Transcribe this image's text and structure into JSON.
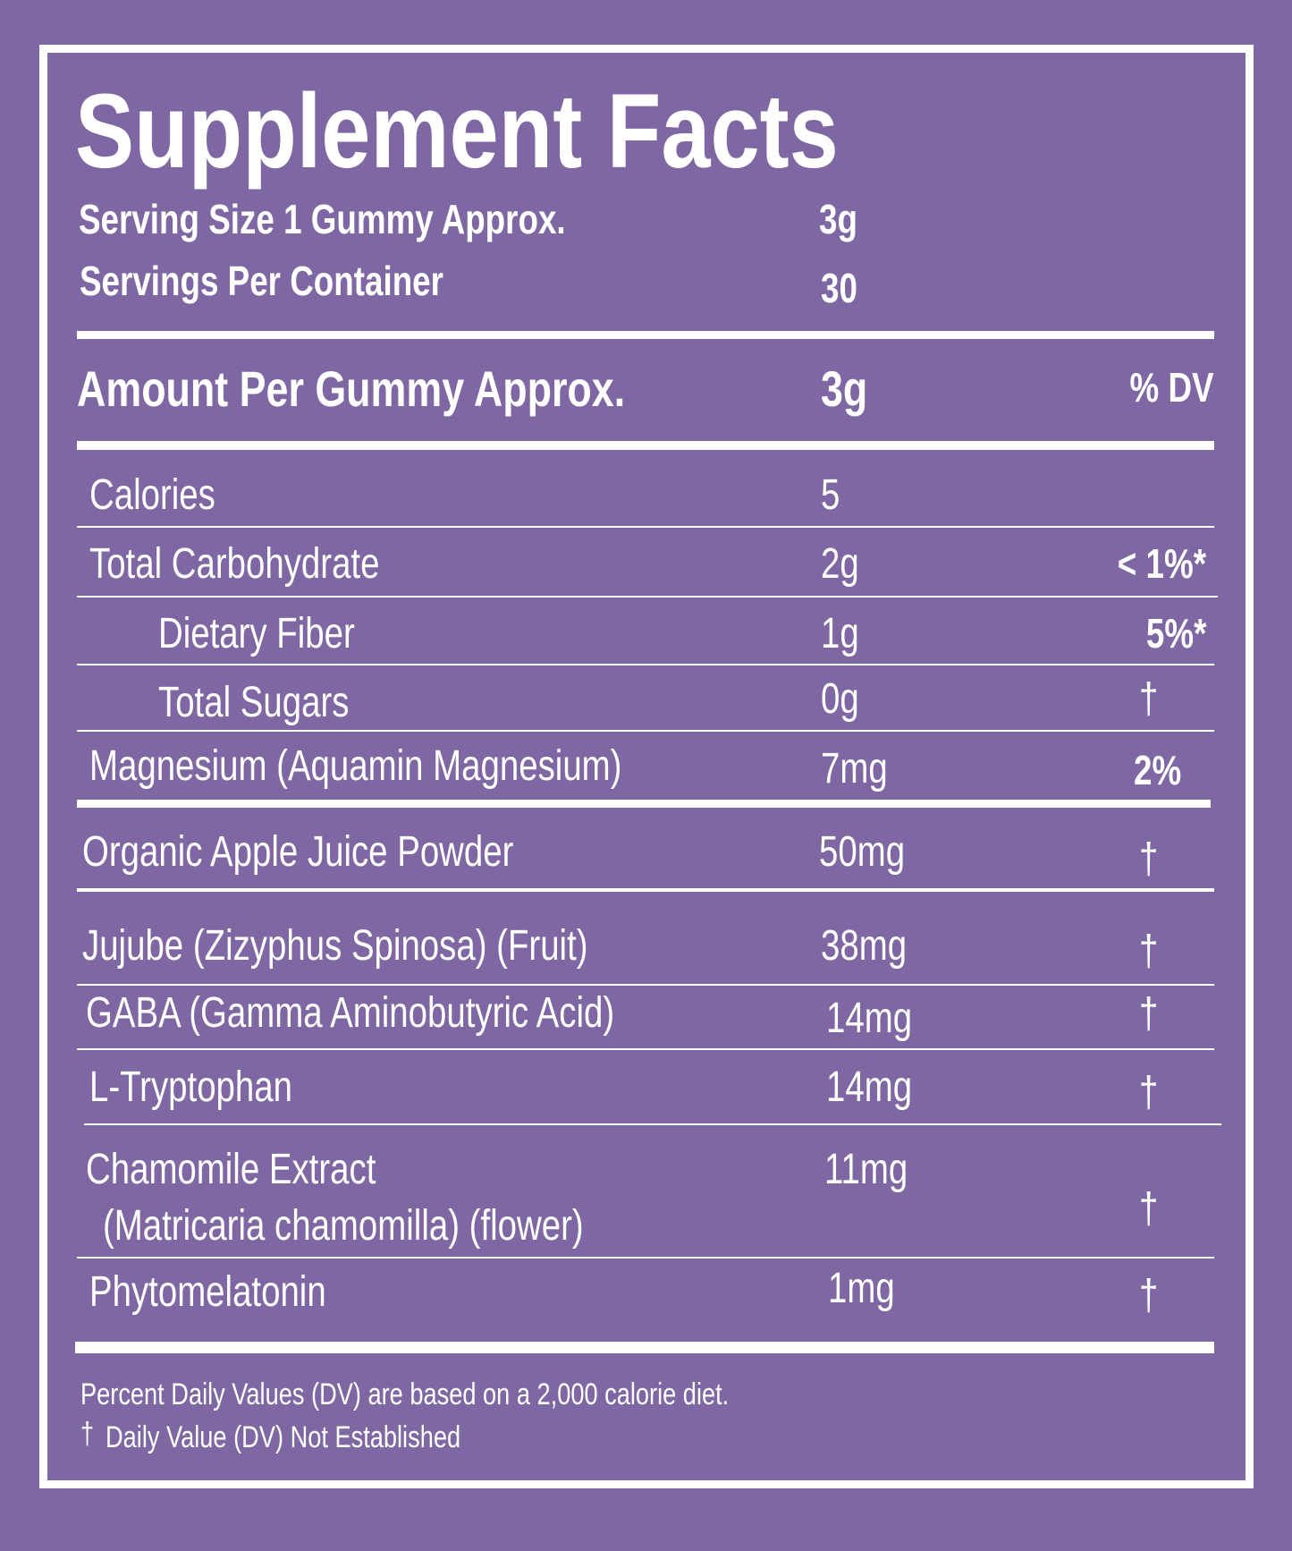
{
  "title": "Supplement Facts",
  "serving": {
    "size_label": "Serving Size 1 Gummy Approx.",
    "size_value": "3g",
    "per_container_label": "Servings Per Container",
    "per_container_value": "30"
  },
  "header": {
    "amount_label": "Amount Per Gummy Approx.",
    "amount_value": "3g",
    "dv_label": "% DV"
  },
  "rows": [
    {
      "label": "Calories",
      "amount": "5",
      "dv": ""
    },
    {
      "label": "Total Carbohydrate",
      "amount": "2g",
      "dv": "< 1%*"
    },
    {
      "label": "Dietary Fiber",
      "amount": "1g",
      "dv": "5%*"
    },
    {
      "label": "Total Sugars",
      "amount": "0g",
      "dv": "†"
    },
    {
      "label": "Magnesium (Aquamin Magnesium)",
      "amount": "7mg",
      "dv": "2%"
    },
    {
      "label": "Organic Apple Juice Powder",
      "amount": "50mg",
      "dv": "†"
    },
    {
      "label": "Jujube (Zizyphus Spinosa) (Fruit)",
      "amount": "38mg",
      "dv": "†"
    },
    {
      "label": "GABA (Gamma Aminobutyric Acid)",
      "amount": "14mg",
      "dv": "†"
    },
    {
      "label": "L-Tryptophan",
      "amount": "14mg",
      "dv": "†"
    },
    {
      "label": "Chamomile Extract",
      "label_line2": "(Matricaria chamomilla) (flower)",
      "amount": "11mg",
      "dv": "†"
    },
    {
      "label": "Phytomelatonin",
      "amount": "1mg",
      "dv": "†"
    }
  ],
  "footer": {
    "line1": "Percent Daily Values (DV) are based on a 2,000 calorie diet.",
    "dagger": "†",
    "line2": "Daily Value (DV) Not Established"
  },
  "colors": {
    "background": "#7e67a2",
    "text": "#ffffff"
  }
}
